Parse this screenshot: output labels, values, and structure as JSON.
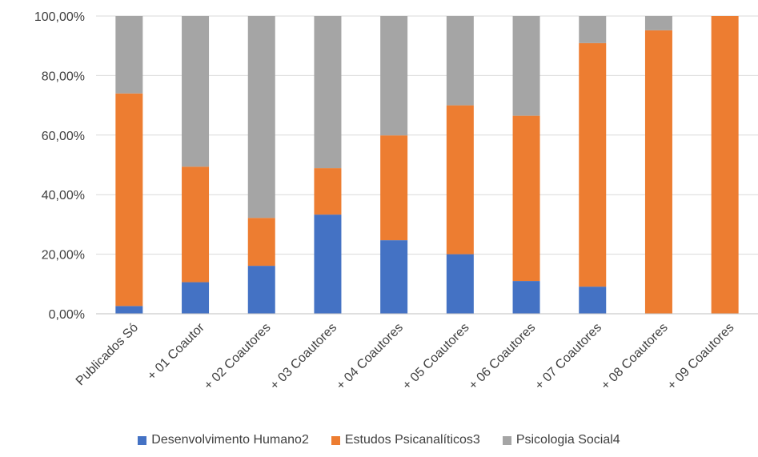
{
  "chart_data": {
    "type": "bar",
    "stacked": true,
    "categories": [
      "Publicados Só",
      "+ 01 Coautor",
      "+ 02 Coautores",
      "+ 03 Coautores",
      "+ 04 Coautores",
      "+ 05 Coautores",
      "+ 06 Coautores",
      "+ 07 Coautores",
      "+ 08 Coautores",
      "+ 09 Coautores"
    ],
    "series": [
      {
        "name": "Desenvolvimento Humano2",
        "color": "#4472c4",
        "values": [
          2.6,
          10.6,
          16.1,
          33.3,
          24.7,
          20.0,
          11.0,
          9.1,
          0.0,
          0.0
        ]
      },
      {
        "name": "Estudos Psicanalíticos3",
        "color": "#ed7d31",
        "values": [
          71.4,
          38.8,
          16.1,
          15.6,
          35.2,
          50.0,
          55.5,
          81.8,
          95.2,
          100.0
        ]
      },
      {
        "name": "Psicologia Social4",
        "color": "#a5a5a5",
        "values": [
          26.0,
          50.6,
          67.8,
          51.1,
          40.1,
          30.0,
          33.5,
          9.1,
          4.8,
          0.0
        ]
      }
    ],
    "y_ticks": [
      "0,00%",
      "20,00%",
      "40,00%",
      "60,00%",
      "80,00%",
      "100,00%"
    ],
    "ylim": [
      0,
      100
    ],
    "grid": true,
    "legend_position": "bottom",
    "gridline_color": "#d9d9d9",
    "axis_color": "#bfbfbf",
    "text_color": "#404040"
  }
}
